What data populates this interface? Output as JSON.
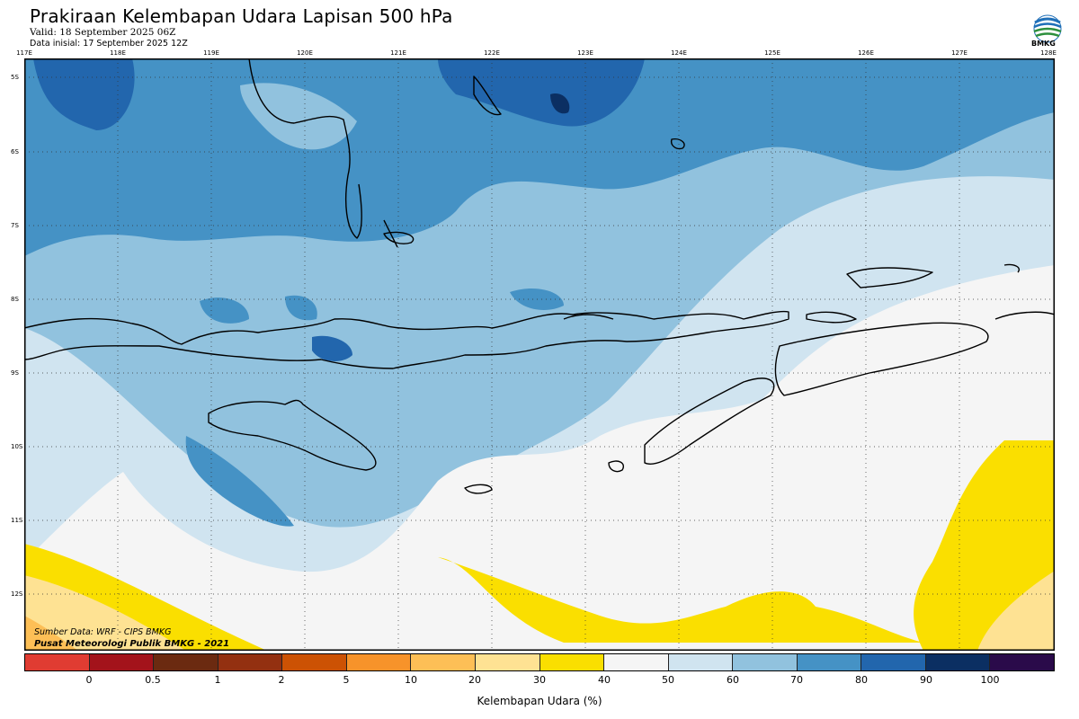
{
  "header": {
    "title": "Prakiraan Kelembapan Udara Lapisan 500 hPa",
    "valid": "Valid: 18 September 2025 06Z",
    "initial": "Data inisial: 17 September 2025 12Z"
  },
  "logo": {
    "icon": "bmkg-logo-icon",
    "text": "BMKG"
  },
  "map": {
    "longitude_labels": [
      "117E",
      "118E",
      "119E",
      "120E",
      "121E",
      "122E",
      "123E",
      "124E",
      "125E",
      "126E",
      "127E",
      "128E"
    ],
    "latitude_labels": [
      "5S",
      "6S",
      "7S",
      "8S",
      "9S",
      "10S",
      "11S",
      "12S"
    ],
    "extent": {
      "lon": [
        117,
        128
      ],
      "lat": [
        -5,
        -13
      ]
    },
    "grid": "dotted",
    "field": "relative humidity (%)",
    "source_line1": "Sumber Data: WRF - CIPS BMKG",
    "source_line2": "Pusat Meteorologi Publik BMKG - 2021"
  },
  "colorbar": {
    "title": "Kelembapan Udara (%)",
    "ticks": [
      "0",
      "0.5",
      "1",
      "2",
      "5",
      "10",
      "20",
      "30",
      "40",
      "50",
      "60",
      "70",
      "80",
      "90",
      "100"
    ],
    "colors": [
      "#e03c32",
      "#a3131b",
      "#6b2a10",
      "#933010",
      "#cc5204",
      "#f7932a",
      "#fdbf56",
      "#fee293",
      "#fadf00",
      "#f5f5f5",
      "#d0e4f0",
      "#91c2de",
      "#4592c5",
      "#2266ad",
      "#0b2f62",
      "#2a0a4a"
    ]
  }
}
